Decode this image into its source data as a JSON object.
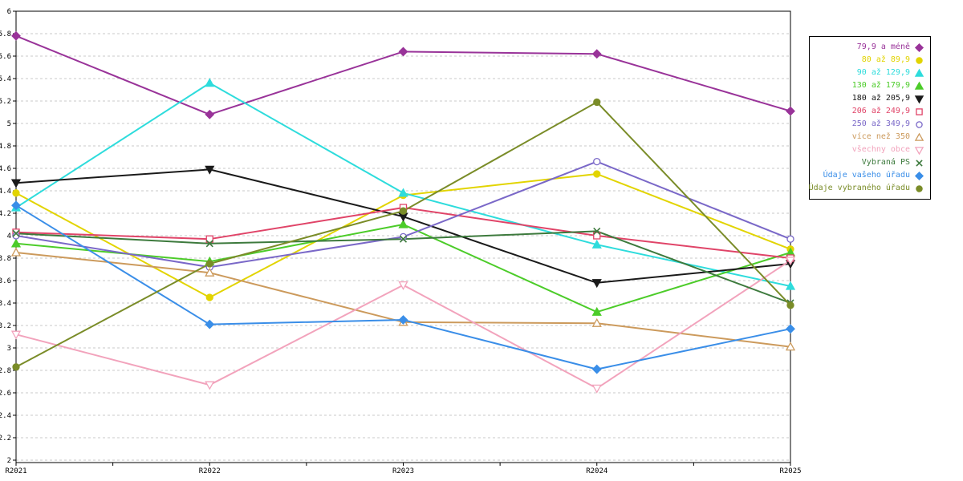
{
  "chart_data": {
    "type": "line",
    "title": "",
    "xlabel": "",
    "ylabel": "",
    "x_labels": [
      "R2021",
      "R2022",
      "R2023",
      "R2024",
      "R2025"
    ],
    "ylim": [
      2,
      6
    ],
    "ytick_step": 0.2,
    "grid": "horizontal-dashed",
    "legend_position": "right",
    "series": [
      {
        "name": "79,9 a méně",
        "color": "#993399",
        "marker": "diamond",
        "filled": true,
        "values": [
          5.78,
          5.08,
          5.64,
          5.62,
          5.11
        ]
      },
      {
        "name": "80 až 89,9",
        "color": "#E2D400",
        "marker": "circle",
        "filled": true,
        "values": [
          4.38,
          3.45,
          4.36,
          4.55,
          3.88
        ]
      },
      {
        "name": "90 až 129,9",
        "color": "#2EDCDC",
        "marker": "triangle-up",
        "filled": true,
        "values": [
          4.25,
          5.36,
          4.38,
          3.92,
          3.55
        ]
      },
      {
        "name": "130 až 179,9",
        "color": "#4CCC29",
        "marker": "triangle-up",
        "filled": true,
        "values": [
          3.93,
          3.77,
          4.1,
          3.32,
          3.85
        ]
      },
      {
        "name": "180 až 205,9",
        "color": "#1A1A1A",
        "marker": "triangle-down",
        "filled": true,
        "values": [
          4.47,
          4.59,
          4.17,
          3.58,
          3.75
        ]
      },
      {
        "name": "206 až 249,9",
        "color": "#E04468",
        "marker": "square",
        "filled": false,
        "values": [
          4.03,
          3.97,
          4.25,
          4.0,
          3.8
        ]
      },
      {
        "name": "250 až 349,9",
        "color": "#7A68C8",
        "marker": "circle",
        "filled": false,
        "values": [
          4.0,
          3.72,
          3.99,
          4.66,
          3.97
        ]
      },
      {
        "name": "více než 350",
        "color": "#CC9A5C",
        "marker": "triangle-up",
        "filled": false,
        "values": [
          3.85,
          3.67,
          3.23,
          3.22,
          3.01
        ]
      },
      {
        "name": "všechny obce",
        "color": "#F2A3BC",
        "marker": "triangle-down",
        "filled": false,
        "values": [
          3.12,
          2.67,
          3.56,
          2.64,
          3.78
        ]
      },
      {
        "name": "Vybraná PS",
        "color": "#3D7A3D",
        "marker": "x",
        "filled": false,
        "values": [
          4.02,
          3.93,
          3.97,
          4.04,
          3.4
        ]
      },
      {
        "name": "Údaje vašeho úřadu",
        "color": "#3A8EE8",
        "marker": "diamond",
        "filled": true,
        "values": [
          4.27,
          3.21,
          3.25,
          2.81,
          3.17
        ]
      },
      {
        "name": "Údaje vybraného úřadu",
        "color": "#7A8C28",
        "marker": "circle",
        "filled": true,
        "values": [
          2.83,
          3.75,
          4.22,
          5.19,
          3.38
        ]
      }
    ],
    "colors": {
      "plot_border": "#000000",
      "gridline": "#C8C8C8",
      "axis_text": "#000000",
      "background": "#FFFFFF"
    }
  }
}
